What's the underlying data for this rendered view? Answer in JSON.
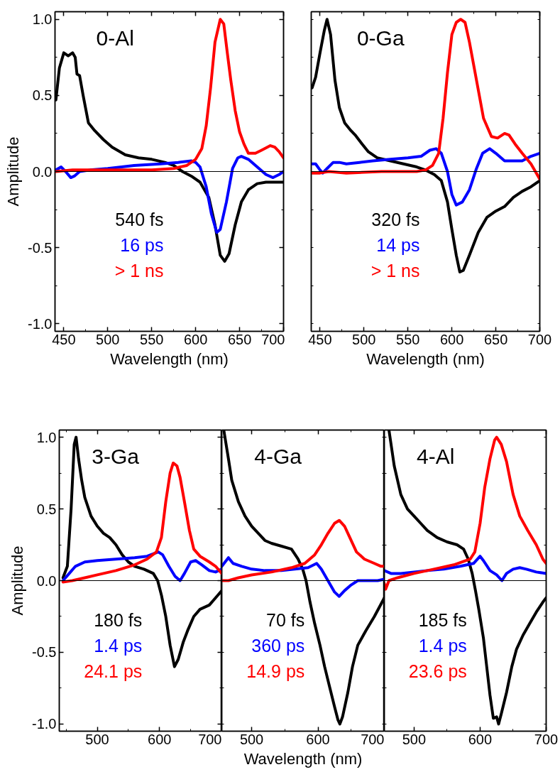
{
  "chart_data": [
    {
      "type": "line",
      "title": "0-Al",
      "xlabel": "Wavelength (nm)",
      "ylabel": "Amplitude",
      "xlim": [
        440,
        700
      ],
      "ylim": [
        -1.05,
        1.05
      ],
      "xticks": [
        450,
        {
          "value": 475,
          "label": null
        },
        500,
        {
          "value": 525,
          "label": null
        },
        550,
        {
          "value": 575,
          "label": null
        },
        600,
        {
          "value": 625,
          "label": null
        },
        650,
        {
          "value": 675,
          "label": null
        },
        700
      ],
      "yticks": [
        {
          "value": -1,
          "label": "-1.0"
        },
        {
          "value": -0.75,
          "label": null
        },
        {
          "value": -0.5,
          "label": "-0.5"
        },
        {
          "value": -0.25,
          "label": null
        },
        {
          "value": 0,
          "label": "0.0"
        },
        {
          "value": 0.25,
          "label": null
        },
        {
          "value": 0.5,
          "label": "0.5"
        },
        {
          "value": 0.75,
          "label": null
        },
        {
          "value": 1,
          "label": "1.0"
        }
      ],
      "ref_lines": [
        {
          "axis": "y",
          "value": 0,
          "color": "#000000"
        }
      ],
      "series": [
        {
          "name": "540 fs",
          "color": "#000000",
          "x": [
            441,
            445,
            450,
            455,
            460,
            463,
            465,
            468,
            472,
            478,
            485,
            495,
            505,
            520,
            535,
            550,
            565,
            575,
            585,
            595,
            605,
            615,
            622,
            628,
            633,
            638,
            645,
            652,
            660,
            670,
            680,
            690,
            700
          ],
          "values": [
            0.47,
            0.68,
            0.78,
            0.76,
            0.78,
            0.75,
            0.64,
            0.63,
            0.5,
            0.32,
            0.27,
            0.21,
            0.16,
            0.11,
            0.09,
            0.08,
            0.06,
            0.04,
            0.0,
            -0.03,
            -0.07,
            -0.17,
            -0.35,
            -0.55,
            -0.59,
            -0.54,
            -0.35,
            -0.2,
            -0.12,
            -0.08,
            -0.07,
            -0.07,
            -0.07
          ]
        },
        {
          "name": "16 ps",
          "color": "#0000ff",
          "x": [
            441,
            447,
            452,
            458,
            462,
            468,
            480,
            500,
            530,
            560,
            580,
            595,
            600,
            605,
            612,
            618,
            624,
            628,
            635,
            642,
            648,
            652,
            660,
            670,
            680,
            688,
            695,
            700
          ],
          "values": [
            0.01,
            0.03,
            0.0,
            -0.04,
            -0.03,
            0.0,
            0.01,
            0.02,
            0.04,
            0.05,
            0.06,
            0.07,
            0.06,
            0.03,
            -0.1,
            -0.28,
            -0.4,
            -0.38,
            -0.2,
            0.02,
            0.09,
            0.1,
            0.08,
            0.03,
            -0.02,
            -0.04,
            -0.02,
            0.0
          ]
        },
        {
          "name": "> 1 ns",
          "color": "#ff0000",
          "x": [
            441,
            460,
            500,
            550,
            575,
            590,
            600,
            607,
            612,
            617,
            622,
            628,
            632,
            636,
            640,
            645,
            650,
            655,
            660,
            668,
            675,
            685,
            690,
            695,
            700
          ],
          "values": [
            0.0,
            0.01,
            0.01,
            0.01,
            0.02,
            0.04,
            0.08,
            0.15,
            0.3,
            0.55,
            0.85,
            1.0,
            0.97,
            0.78,
            0.6,
            0.4,
            0.26,
            0.18,
            0.12,
            0.12,
            0.14,
            0.17,
            0.16,
            0.13,
            0.09
          ]
        }
      ]
    },
    {
      "type": "line",
      "title": "0-Ga",
      "xlabel": "Wavelength (nm)",
      "tick_labels": "x",
      "xlim": [
        440,
        700
      ],
      "ylim": [
        -1.05,
        1.05
      ],
      "xticks": [
        450,
        {
          "value": 475,
          "label": null
        },
        500,
        {
          "value": 525,
          "label": null
        },
        550,
        {
          "value": 575,
          "label": null
        },
        600,
        {
          "value": 625,
          "label": null
        },
        650,
        {
          "value": 675,
          "label": null
        },
        700
      ],
      "yticks": [
        {
          "value": -1,
          "label": null
        },
        {
          "value": -0.75,
          "label": null
        },
        {
          "value": -0.5,
          "label": null
        },
        {
          "value": -0.25,
          "label": null
        },
        {
          "value": 0,
          "label": null
        },
        {
          "value": 0.25,
          "label": null
        },
        {
          "value": 0.5,
          "label": null
        },
        {
          "value": 0.75,
          "label": null
        },
        {
          "value": 1,
          "label": null
        }
      ],
      "ref_lines": [
        {
          "axis": "y",
          "value": 0,
          "color": "#000000"
        }
      ],
      "series": [
        {
          "name": "320 fs",
          "color": "#000000",
          "x": [
            441,
            445,
            450,
            455,
            458,
            462,
            467,
            472,
            478,
            485,
            490,
            498,
            505,
            515,
            530,
            545,
            560,
            570,
            580,
            588,
            595,
            600,
            605,
            609,
            613,
            620,
            630,
            640,
            650,
            660,
            670,
            680,
            690,
            700
          ],
          "values": [
            0.55,
            0.62,
            0.78,
            0.93,
            1.0,
            0.9,
            0.6,
            0.42,
            0.32,
            0.27,
            0.24,
            0.18,
            0.13,
            0.09,
            0.07,
            0.05,
            0.03,
            0.01,
            -0.02,
            -0.06,
            -0.2,
            -0.38,
            -0.55,
            -0.66,
            -0.65,
            -0.55,
            -0.4,
            -0.3,
            -0.26,
            -0.23,
            -0.17,
            -0.13,
            -0.1,
            -0.06
          ]
        },
        {
          "name": "14 ps",
          "color": "#0000ff",
          "x": [
            441,
            445,
            450,
            453,
            458,
            465,
            472,
            480,
            495,
            510,
            530,
            550,
            565,
            575,
            582,
            588,
            595,
            600,
            605,
            612,
            620,
            628,
            635,
            643,
            650,
            660,
            670,
            680,
            690,
            700
          ],
          "values": [
            0.05,
            0.05,
            0.01,
            -0.01,
            0.02,
            0.06,
            0.06,
            0.05,
            0.06,
            0.07,
            0.08,
            0.09,
            0.1,
            0.14,
            0.15,
            0.12,
            0.0,
            -0.15,
            -0.22,
            -0.2,
            -0.12,
            0.02,
            0.12,
            0.15,
            0.12,
            0.07,
            0.07,
            0.07,
            0.1,
            0.12
          ]
        },
        {
          "name": "> 1 ns",
          "color": "#ff0000",
          "x": [
            441,
            450,
            460,
            480,
            520,
            560,
            570,
            578,
            585,
            590,
            595,
            600,
            605,
            610,
            615,
            620,
            628,
            636,
            645,
            652,
            660,
            665,
            672,
            680,
            690,
            700
          ],
          "values": [
            -0.01,
            -0.01,
            0.0,
            -0.01,
            0.0,
            0.0,
            0.01,
            0.04,
            0.12,
            0.35,
            0.65,
            0.9,
            0.98,
            1.0,
            0.98,
            0.85,
            0.6,
            0.35,
            0.23,
            0.22,
            0.25,
            0.24,
            0.18,
            0.12,
            0.05,
            -0.05
          ]
        }
      ]
    },
    {
      "type": "line",
      "title": "3-Ga",
      "ylabel": "Amplitude",
      "xlim": [
        439,
        700
      ],
      "ylim": [
        -1.05,
        1.05
      ],
      "xticks": [
        {
          "value": 450,
          "label": null
        },
        500,
        {
          "value": 550,
          "label": null
        },
        600,
        {
          "value": 650,
          "label": null
        },
        700
      ],
      "yticks": [
        {
          "value": -1,
          "label": "-1.0"
        },
        {
          "value": -0.75,
          "label": null
        },
        {
          "value": -0.5,
          "label": "-0.5"
        },
        {
          "value": -0.25,
          "label": null
        },
        {
          "value": 0,
          "label": "0.0"
        },
        {
          "value": 0.25,
          "label": null
        },
        {
          "value": 0.5,
          "label": "0.5"
        },
        {
          "value": 0.75,
          "label": null
        },
        {
          "value": 1,
          "label": "1.0"
        }
      ],
      "ref_lines": [
        {
          "axis": "y",
          "value": 0,
          "color": "#000000"
        }
      ],
      "series": [
        {
          "name": "180 fs",
          "color": "#000000",
          "x": [
            445,
            452,
            458,
            463,
            466,
            470,
            475,
            480,
            490,
            500,
            510,
            520,
            530,
            540,
            550,
            560,
            575,
            590,
            597,
            603,
            610,
            617,
            624,
            630,
            638,
            645,
            655,
            665,
            680,
            690,
            700
          ],
          "values": [
            0.02,
            0.1,
            0.5,
            0.95,
            1.0,
            0.85,
            0.7,
            0.58,
            0.45,
            0.38,
            0.33,
            0.3,
            0.25,
            0.18,
            0.13,
            0.1,
            0.08,
            0.05,
            0.0,
            -0.1,
            -0.25,
            -0.45,
            -0.6,
            -0.55,
            -0.43,
            -0.35,
            -0.25,
            -0.2,
            -0.17,
            -0.12,
            -0.07
          ]
        },
        {
          "name": "1.4 ps",
          "color": "#0000ff",
          "x": [
            445,
            455,
            465,
            480,
            500,
            530,
            560,
            580,
            598,
            605,
            615,
            625,
            633,
            640,
            650,
            658,
            668,
            680,
            690,
            700
          ],
          "values": [
            0.0,
            0.05,
            0.1,
            0.13,
            0.14,
            0.15,
            0.16,
            0.17,
            0.2,
            0.18,
            0.1,
            0.03,
            0.0,
            0.05,
            0.13,
            0.14,
            0.11,
            0.07,
            0.06,
            0.08
          ]
        },
        {
          "name": "24.1 ps",
          "color": "#ff0000",
          "x": [
            445,
            460,
            480,
            500,
            530,
            560,
            580,
            595,
            603,
            610,
            617,
            622,
            628,
            633,
            640,
            648,
            655,
            665,
            680,
            690,
            700
          ],
          "values": [
            -0.01,
            0.0,
            0.02,
            0.04,
            0.07,
            0.11,
            0.15,
            0.2,
            0.3,
            0.55,
            0.75,
            0.82,
            0.8,
            0.72,
            0.55,
            0.35,
            0.22,
            0.17,
            0.13,
            0.1,
            0.05
          ]
        }
      ]
    },
    {
      "type": "line",
      "title": "4-Ga",
      "xlabel": "Wavelength (nm)",
      "tick_labels": "x",
      "xlim": [
        455,
        700
      ],
      "ylim": [
        -1.05,
        1.05
      ],
      "xticks": [
        500,
        {
          "value": 550,
          "label": null
        },
        600,
        {
          "value": 650,
          "label": null
        },
        700
      ],
      "yticks": [
        {
          "value": -1,
          "label": null
        },
        {
          "value": -0.75,
          "label": null
        },
        {
          "value": -0.5,
          "label": null
        },
        {
          "value": -0.25,
          "label": null
        },
        {
          "value": 0,
          "label": null
        },
        {
          "value": 0.25,
          "label": null
        },
        {
          "value": 0.5,
          "label": null
        },
        {
          "value": 0.75,
          "label": null
        },
        {
          "value": 1,
          "label": null
        }
      ],
      "ref_lines": [
        {
          "axis": "y",
          "value": 0,
          "color": "#000000"
        }
      ],
      "series": [
        {
          "name": "70 fs",
          "color": "#000000",
          "x": [
            458,
            465,
            470,
            480,
            490,
            500,
            510,
            520,
            530,
            545,
            560,
            570,
            577,
            582,
            588,
            595,
            603,
            610,
            618,
            625,
            630,
            633,
            637,
            645,
            652,
            660,
            672,
            685,
            700
          ],
          "values": [
            1.05,
            0.85,
            0.7,
            0.55,
            0.45,
            0.38,
            0.33,
            0.28,
            0.26,
            0.24,
            0.22,
            0.15,
            0.08,
            0.0,
            -0.15,
            -0.3,
            -0.45,
            -0.6,
            -0.75,
            -0.88,
            -0.97,
            -1.0,
            -0.95,
            -0.78,
            -0.6,
            -0.45,
            -0.35,
            -0.25,
            -0.12
          ]
        },
        {
          "name": "360 ps",
          "color": "#0000ff",
          "x": [
            455,
            460,
            465,
            472,
            485,
            500,
            520,
            545,
            565,
            585,
            598,
            605,
            615,
            625,
            632,
            640,
            650,
            660,
            675,
            690,
            700
          ],
          "values": [
            0.1,
            0.13,
            0.16,
            0.12,
            0.1,
            0.08,
            0.07,
            0.07,
            0.08,
            0.09,
            0.12,
            0.08,
            0.0,
            -0.08,
            -0.11,
            -0.07,
            -0.03,
            0.0,
            0.0,
            0.0,
            0.01
          ]
        },
        {
          "name": "14.9 ps",
          "color": "#ff0000",
          "x": [
            455,
            465,
            480,
            500,
            530,
            560,
            580,
            595,
            605,
            615,
            625,
            632,
            640,
            648,
            658,
            670,
            685,
            695,
            700
          ],
          "values": [
            0.0,
            0.0,
            0.02,
            0.04,
            0.06,
            0.09,
            0.12,
            0.18,
            0.25,
            0.33,
            0.4,
            0.42,
            0.38,
            0.3,
            0.2,
            0.15,
            0.12,
            0.1,
            0.1
          ]
        }
      ]
    },
    {
      "type": "line",
      "title": "4-Al",
      "tick_labels": "x",
      "xlim": [
        455,
        700
      ],
      "ylim": [
        -1.05,
        1.05
      ],
      "xticks": [
        500,
        {
          "value": 550,
          "label": null
        },
        600,
        {
          "value": 650,
          "label": null
        },
        700
      ],
      "yticks": [
        {
          "value": -1,
          "label": null
        },
        {
          "value": -0.75,
          "label": null
        },
        {
          "value": -0.5,
          "label": null
        },
        {
          "value": -0.25,
          "label": null
        },
        {
          "value": 0,
          "label": null
        },
        {
          "value": 0.25,
          "label": null
        },
        {
          "value": 0.5,
          "label": null
        },
        {
          "value": 0.75,
          "label": null
        },
        {
          "value": 1,
          "label": null
        }
      ],
      "ref_lines": [
        {
          "axis": "y",
          "value": 0,
          "color": "#000000"
        }
      ],
      "series": [
        {
          "name": "185 fs",
          "color": "#000000",
          "x": [
            462,
            470,
            480,
            490,
            500,
            510,
            520,
            535,
            550,
            565,
            575,
            582,
            588,
            593,
            598,
            605,
            610,
            615,
            620,
            625,
            628,
            632,
            640,
            648,
            655,
            665,
            675,
            685,
            695,
            700
          ],
          "values": [
            1.05,
            0.8,
            0.6,
            0.5,
            0.45,
            0.4,
            0.35,
            0.3,
            0.27,
            0.25,
            0.22,
            0.15,
            0.05,
            -0.07,
            -0.2,
            -0.4,
            -0.6,
            -0.8,
            -0.96,
            -0.95,
            -1.0,
            -0.93,
            -0.78,
            -0.6,
            -0.48,
            -0.38,
            -0.3,
            -0.22,
            -0.15,
            -0.12
          ]
        },
        {
          "name": "1.4 ps",
          "color": "#0000ff",
          "x": [
            455,
            465,
            480,
            500,
            520,
            545,
            570,
            590,
            600,
            605,
            615,
            625,
            633,
            640,
            650,
            660,
            670,
            685,
            700
          ],
          "values": [
            0.07,
            0.05,
            0.05,
            0.06,
            0.07,
            0.08,
            0.1,
            0.12,
            0.17,
            0.14,
            0.07,
            0.04,
            0.0,
            0.05,
            0.08,
            0.09,
            0.08,
            0.06,
            0.05
          ]
        },
        {
          "name": "23.6 ps",
          "color": "#ff0000",
          "x": [
            455,
            457,
            462,
            475,
            500,
            530,
            560,
            585,
            592,
            600,
            607,
            615,
            622,
            625,
            632,
            640,
            650,
            660,
            672,
            685,
            695,
            700
          ],
          "values": [
            -0.02,
            -0.06,
            0.0,
            0.02,
            0.05,
            0.08,
            0.11,
            0.15,
            0.2,
            0.4,
            0.65,
            0.85,
            0.98,
            1.0,
            0.95,
            0.83,
            0.6,
            0.45,
            0.35,
            0.25,
            0.15,
            0.12
          ]
        }
      ]
    }
  ]
}
